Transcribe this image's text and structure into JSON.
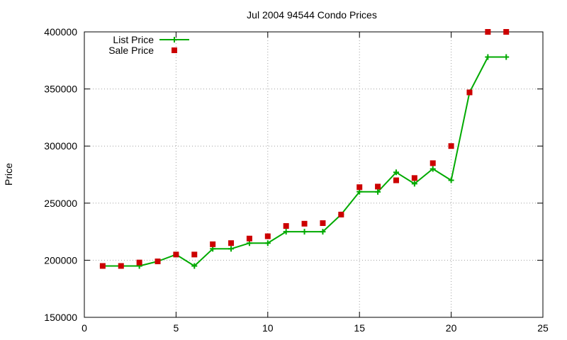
{
  "chart_data": {
    "type": "line",
    "title": "Jul 2004 94544 Condo Prices",
    "xlabel": "",
    "ylabel": "Price",
    "xlim": [
      0,
      25
    ],
    "ylim": [
      150000,
      400000
    ],
    "x_ticks": [
      "0",
      "5",
      "10",
      "15",
      "20",
      "25"
    ],
    "y_ticks": [
      "150000",
      "200000",
      "250000",
      "300000",
      "350000",
      "400000"
    ],
    "grid": true,
    "legend_position": "top-left",
    "series": [
      {
        "name": "List Price",
        "style": "line-with-plus-markers",
        "color": "#00aa00",
        "x": [
          1,
          2,
          3,
          4,
          5,
          6,
          7,
          8,
          9,
          10,
          11,
          12,
          13,
          14,
          15,
          16,
          17,
          18,
          19,
          20,
          21,
          22,
          23
        ],
        "y": [
          195000,
          195000,
          195000,
          199000,
          205000,
          195000,
          210000,
          210000,
          215000,
          215000,
          225000,
          225000,
          225000,
          240000,
          260000,
          259900,
          277000,
          267000,
          280000,
          270000,
          347000,
          378000,
          378000
        ]
      },
      {
        "name": "Sale Price",
        "style": "square-markers",
        "color": "#cc0000",
        "x": [
          1,
          2,
          3,
          4,
          5,
          6,
          7,
          8,
          9,
          10,
          11,
          12,
          13,
          14,
          15,
          16,
          17,
          18,
          19,
          20,
          21,
          22,
          23
        ],
        "y": [
          195000,
          195000,
          198000,
          199000,
          205000,
          205000,
          214000,
          215000,
          219000,
          221000,
          230000,
          232000,
          232500,
          240000,
          264000,
          264500,
          270000,
          272000,
          285000,
          300000,
          347000,
          400000,
          400000
        ]
      }
    ]
  }
}
